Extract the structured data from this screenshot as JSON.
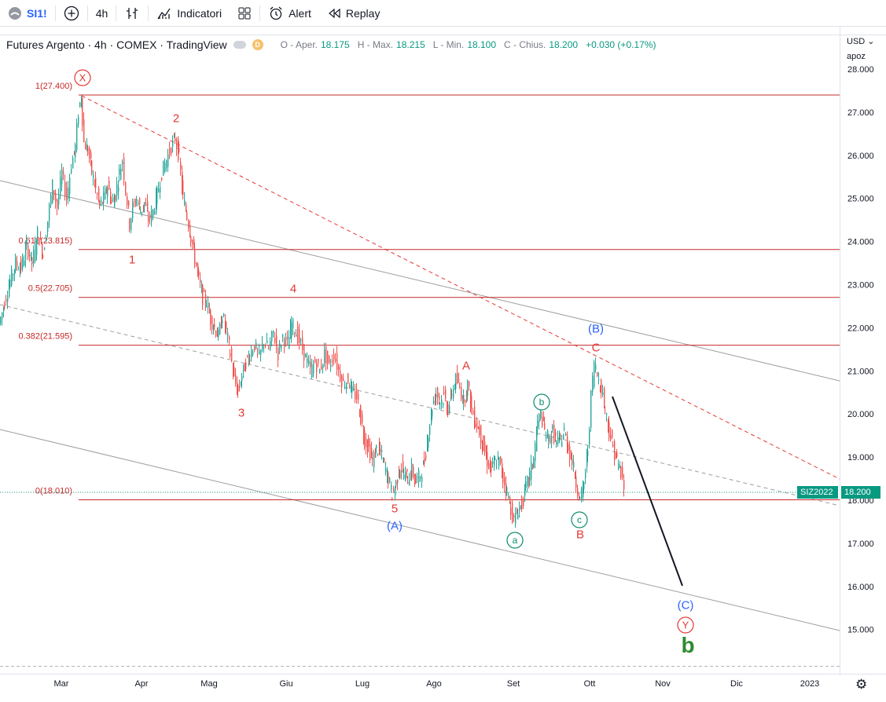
{
  "toolbar": {
    "symbol": "SI1!",
    "add_label": "+",
    "interval": "4h",
    "indicators_label": "Indicatori",
    "alert_label": "Alert",
    "replay_label": "Replay"
  },
  "legend": {
    "title": "Futures Argento · 4h · COMEX · TradingView",
    "d_badge": "D",
    "open_label": "O - Aper.",
    "open": "18.175",
    "high_label": "H - Max.",
    "high": "18.215",
    "low_label": "L - Min.",
    "low": "18.100",
    "close_label": "C - Chius.",
    "close": "18.200",
    "change": "+0.030 (+0.17%)"
  },
  "price_axis": {
    "currency": "USD",
    "mode": "apoz",
    "ticks": [
      "28.000",
      "27.000",
      "26.000",
      "25.000",
      "24.000",
      "23.000",
      "22.000",
      "21.000",
      "20.000",
      "19.000",
      "18.000",
      "17.000",
      "16.000",
      "15.000"
    ]
  },
  "time_axis": {
    "ticks": [
      "Mar",
      "Apr",
      "Mag",
      "Giu",
      "Lug",
      "Ago",
      "Set",
      "Ott",
      "Nov",
      "Dic",
      "2023"
    ]
  },
  "last_price": {
    "contract": "SIZ2022",
    "value": "18.200"
  },
  "fib_levels": [
    {
      "label": "1(27.400)",
      "price": 27.4
    },
    {
      "label": "0.618(23.815)",
      "price": 23.815
    },
    {
      "label": "0.5(22.705)",
      "price": 22.705
    },
    {
      "label": "0.382(21.595)",
      "price": 21.595
    },
    {
      "label": "0(18.010)",
      "price": 18.01
    }
  ],
  "wave_labels": [
    {
      "text": "X",
      "style": "circle-red"
    },
    {
      "text": "2",
      "style": "red"
    },
    {
      "text": "1",
      "style": "red"
    },
    {
      "text": "4",
      "style": "red"
    },
    {
      "text": "3",
      "style": "red"
    },
    {
      "text": "5",
      "style": "red"
    },
    {
      "text": "(A)",
      "style": "blue"
    },
    {
      "text": "A",
      "style": "red"
    },
    {
      "text": "b",
      "style": "circle-teal"
    },
    {
      "text": "a",
      "style": "circle-teal"
    },
    {
      "text": "c",
      "style": "circle-teal"
    },
    {
      "text": "B",
      "style": "red"
    },
    {
      "text": "(B)",
      "style": "blue"
    },
    {
      "text": "C",
      "style": "red"
    },
    {
      "text": "(C)",
      "style": "blue"
    },
    {
      "text": "Y",
      "style": "circle-red"
    },
    {
      "text": "b",
      "style": "green-bold"
    }
  ],
  "colors": {
    "fib_line": "#c62828",
    "channel_line": "#9e9e9e",
    "wave_red": "#e53935",
    "wave_blue": "#2962ff",
    "wave_teal": "#0a8c6f",
    "wave_green": "#2e8b2e",
    "candle_up": "#26a69a",
    "candle_down": "#ef5350",
    "last_price_tag": "#089981"
  },
  "price_path": [
    [
      0,
      22.1
    ],
    [
      7,
      22.6
    ],
    [
      14,
      23.1
    ],
    [
      21,
      23.5
    ],
    [
      28,
      23.4
    ],
    [
      35,
      23.9
    ],
    [
      42,
      23.5
    ],
    [
      49,
      24.2
    ],
    [
      56,
      23.7
    ],
    [
      62,
      24.5
    ],
    [
      68,
      25.3
    ],
    [
      74,
      24.8
    ],
    [
      80,
      25.6
    ],
    [
      86,
      25.0
    ],
    [
      92,
      25.8
    ],
    [
      97,
      26.2
    ],
    [
      101,
      27.0
    ],
    [
      104,
      27.4
    ],
    [
      108,
      26.3
    ],
    [
      113,
      26.1
    ],
    [
      118,
      25.6
    ],
    [
      123,
      25.2
    ],
    [
      128,
      24.8
    ],
    [
      133,
      25.0
    ],
    [
      138,
      25.3
    ],
    [
      143,
      24.9
    ],
    [
      148,
      25.1
    ],
    [
      153,
      25.6
    ],
    [
      157,
      25.9
    ],
    [
      161,
      25.2
    ],
    [
      166,
      24.4
    ],
    [
      170,
      24.8
    ],
    [
      175,
      25.0
    ],
    [
      180,
      24.7
    ],
    [
      185,
      24.9
    ],
    [
      190,
      24.5
    ],
    [
      196,
      24.7
    ],
    [
      201,
      25.1
    ],
    [
      207,
      25.6
    ],
    [
      213,
      25.9
    ],
    [
      219,
      26.2
    ],
    [
      224,
      26.4
    ],
    [
      229,
      25.9
    ],
    [
      234,
      25.0
    ],
    [
      239,
      24.6
    ],
    [
      244,
      24.1
    ],
    [
      249,
      23.6
    ],
    [
      254,
      23.1
    ],
    [
      259,
      22.7
    ],
    [
      264,
      22.6
    ],
    [
      269,
      22.2
    ],
    [
      274,
      22.0
    ],
    [
      279,
      21.8
    ],
    [
      284,
      22.3
    ],
    [
      289,
      21.9
    ],
    [
      294,
      21.4
    ],
    [
      299,
      20.8
    ],
    [
      304,
      20.5
    ],
    [
      309,
      20.9
    ],
    [
      314,
      21.2
    ],
    [
      319,
      21.4
    ],
    [
      325,
      21.6
    ],
    [
      331,
      21.3
    ],
    [
      337,
      21.7
    ],
    [
      343,
      21.5
    ],
    [
      349,
      21.9
    ],
    [
      355,
      21.4
    ],
    [
      361,
      21.8
    ],
    [
      367,
      21.6
    ],
    [
      372,
      22.1
    ],
    [
      378,
      21.9
    ],
    [
      384,
      21.6
    ],
    [
      390,
      21.3
    ],
    [
      396,
      21.0
    ],
    [
      402,
      21.2
    ],
    [
      408,
      21.0
    ],
    [
      414,
      21.4
    ],
    [
      420,
      21.1
    ],
    [
      426,
      21.4
    ],
    [
      432,
      21.0
    ],
    [
      438,
      20.7
    ],
    [
      444,
      20.8
    ],
    [
      449,
      20.5
    ],
    [
      455,
      20.4
    ],
    [
      460,
      19.9
    ],
    [
      465,
      19.4
    ],
    [
      470,
      19.2
    ],
    [
      475,
      18.9
    ],
    [
      480,
      19.2
    ],
    [
      485,
      19.1
    ],
    [
      490,
      18.8
    ],
    [
      495,
      18.5
    ],
    [
      500,
      18.1
    ],
    [
      505,
      18.4
    ],
    [
      510,
      18.8
    ],
    [
      515,
      18.6
    ],
    [
      520,
      18.5
    ],
    [
      525,
      18.7
    ],
    [
      530,
      18.4
    ],
    [
      536,
      18.6
    ],
    [
      541,
      18.9
    ],
    [
      546,
      19.6
    ],
    [
      551,
      20.2
    ],
    [
      556,
      20.5
    ],
    [
      561,
      20.3
    ],
    [
      566,
      20.4
    ],
    [
      571,
      20.1
    ],
    [
      576,
      20.5
    ],
    [
      581,
      20.8
    ],
    [
      586,
      20.6
    ],
    [
      591,
      20.3
    ],
    [
      596,
      20.7
    ],
    [
      601,
      20.1
    ],
    [
      606,
      19.8
    ],
    [
      611,
      19.6
    ],
    [
      616,
      19.2
    ],
    [
      621,
      18.9
    ],
    [
      626,
      18.7
    ],
    [
      631,
      18.9
    ],
    [
      636,
      18.9
    ],
    [
      641,
      18.5
    ],
    [
      646,
      18.2
    ],
    [
      651,
      17.8
    ],
    [
      655,
      17.5
    ],
    [
      660,
      17.8
    ],
    [
      665,
      17.9
    ],
    [
      670,
      18.3
    ],
    [
      675,
      18.6
    ],
    [
      680,
      19.0
    ],
    [
      685,
      19.8
    ],
    [
      689,
      20.0
    ],
    [
      694,
      19.6
    ],
    [
      699,
      19.4
    ],
    [
      704,
      19.6
    ],
    [
      709,
      19.3
    ],
    [
      714,
      19.4
    ],
    [
      719,
      19.6
    ],
    [
      724,
      19.2
    ],
    [
      729,
      18.9
    ],
    [
      734,
      18.4
    ],
    [
      739,
      18.0
    ],
    [
      744,
      18.4
    ],
    [
      749,
      19.2
    ],
    [
      753,
      20.4
    ],
    [
      757,
      21.2
    ],
    [
      761,
      20.9
    ],
    [
      766,
      20.6
    ],
    [
      771,
      20.1
    ],
    [
      776,
      19.6
    ],
    [
      781,
      19.2
    ],
    [
      786,
      18.9
    ],
    [
      791,
      18.6
    ],
    [
      794,
      18.3
    ]
  ]
}
